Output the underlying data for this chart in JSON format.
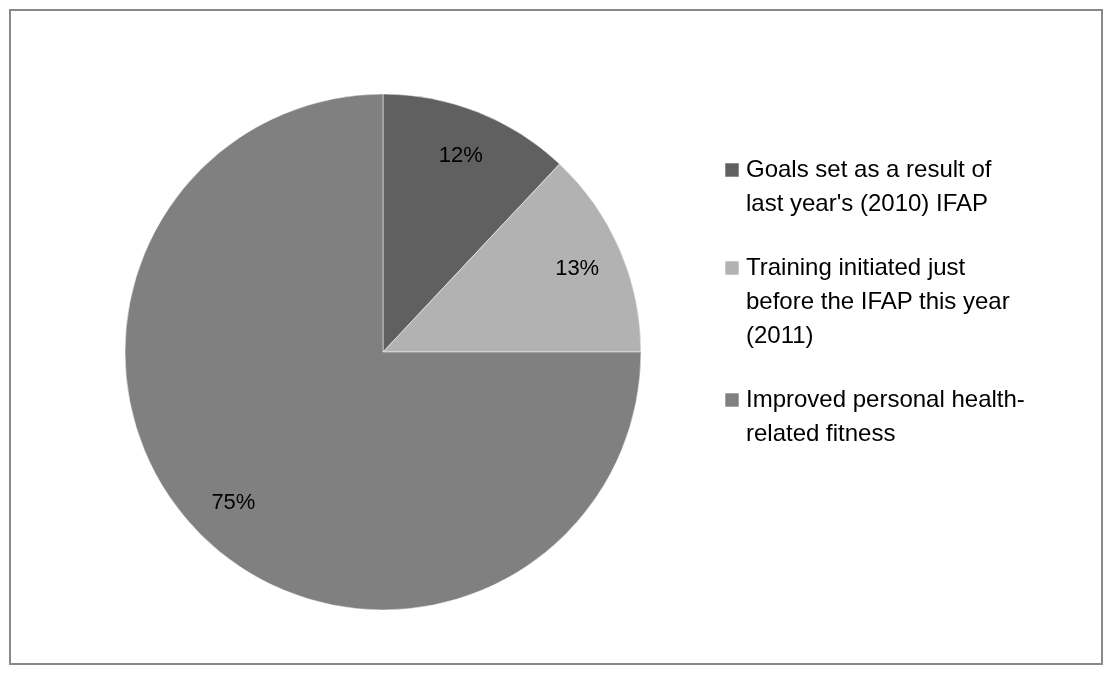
{
  "chart_data": {
    "type": "pie",
    "categories": [
      "Goals set as a result of last year's (2010) IFAP",
      "Training initiated just before the IFAP this year (2011)",
      "Improved personal health-related fitness"
    ],
    "values": [
      12,
      13,
      75
    ],
    "colors": [
      "#606060",
      "#b2b2b2",
      "#808080"
    ],
    "value_labels": [
      "12%",
      "13%",
      "75%"
    ],
    "legend": "right"
  }
}
